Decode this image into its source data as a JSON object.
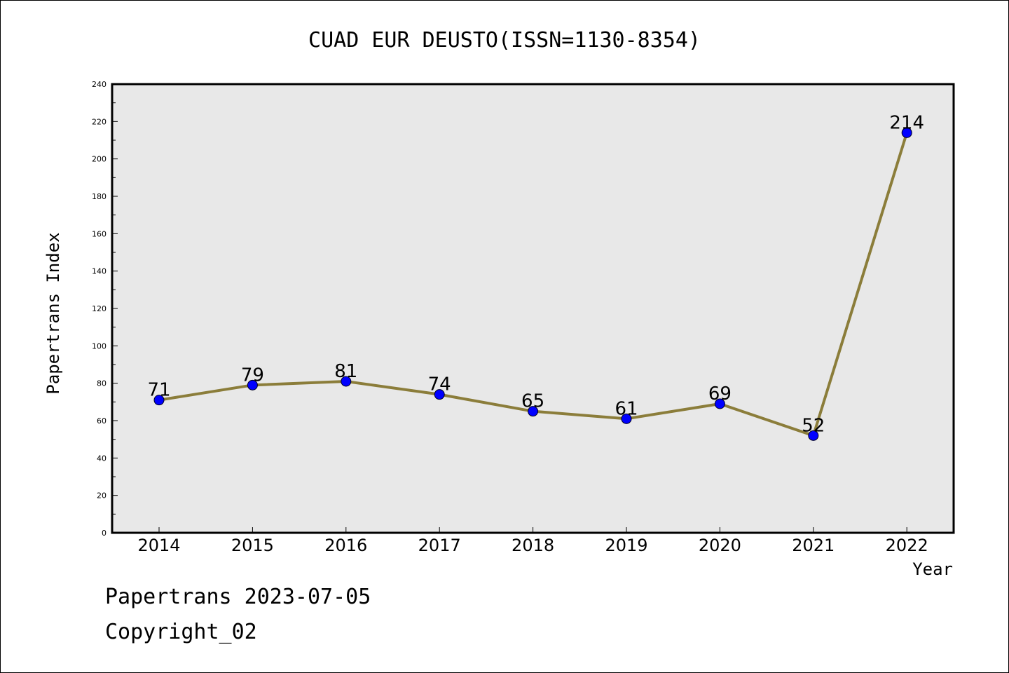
{
  "chart_data": {
    "type": "line",
    "title": "CUAD EUR DEUSTO(ISSN=1130-8354)",
    "xlabel": "Year",
    "ylabel": "Papertrans Index",
    "categories": [
      "2014",
      "2015",
      "2016",
      "2017",
      "2018",
      "2019",
      "2020",
      "2021",
      "2022"
    ],
    "series": [
      {
        "values": [
          71,
          79,
          81,
          74,
          65,
          61,
          69,
          52,
          214
        ]
      }
    ],
    "ylim": [
      0,
      240
    ],
    "yticks": [
      "0",
      "20",
      "40",
      "60",
      "80",
      "100",
      "120",
      "140",
      "160",
      "180",
      "200",
      "220",
      "240"
    ],
    "grid": false,
    "plot_background": "#e8e8e8",
    "line_color": "#8b7d3a",
    "marker_color": "#0000ff"
  },
  "footer": {
    "line1": "Papertrans 2023-07-05",
    "line2": "Copyright_02"
  }
}
